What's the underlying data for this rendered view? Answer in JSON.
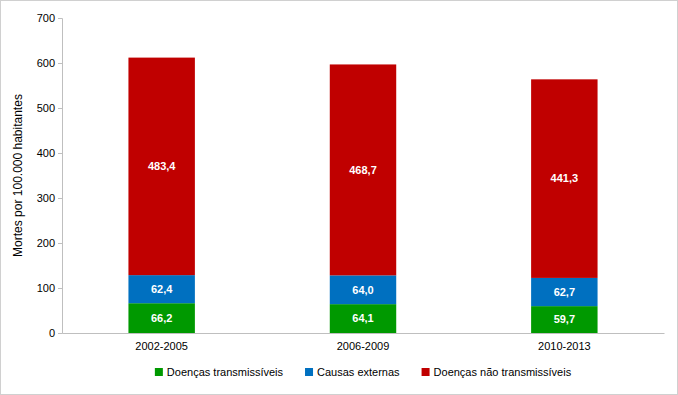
{
  "chart_data": {
    "type": "bar",
    "stacked": true,
    "data_labels": true,
    "grid": false,
    "legend": "bottom",
    "y_label": "Mortes por 100.000 habitantes",
    "categories": [
      "2002-2005",
      "2006-2009",
      "2010-2013"
    ],
    "series": [
      {
        "name": "Doenças transmissíveis",
        "color": "#009900",
        "values": [
          66.2,
          64.1,
          59.7
        ],
        "value_labels": [
          "66,2",
          "64,1",
          "59,7"
        ]
      },
      {
        "name": "Causas externas",
        "color": "#0070c0",
        "values": [
          62.4,
          64.0,
          62.7
        ],
        "value_labels": [
          "62,4",
          "64,0",
          "62,7"
        ]
      },
      {
        "name": "Doenças não transmissíveis",
        "color": "#c00000",
        "values": [
          483.4,
          468.7,
          441.3
        ],
        "value_labels": [
          "483,4",
          "468,7",
          "441,3"
        ]
      }
    ],
    "ylim": [
      0,
      700
    ],
    "yticks": [
      0,
      100,
      200,
      300,
      400,
      500,
      600,
      700
    ]
  }
}
